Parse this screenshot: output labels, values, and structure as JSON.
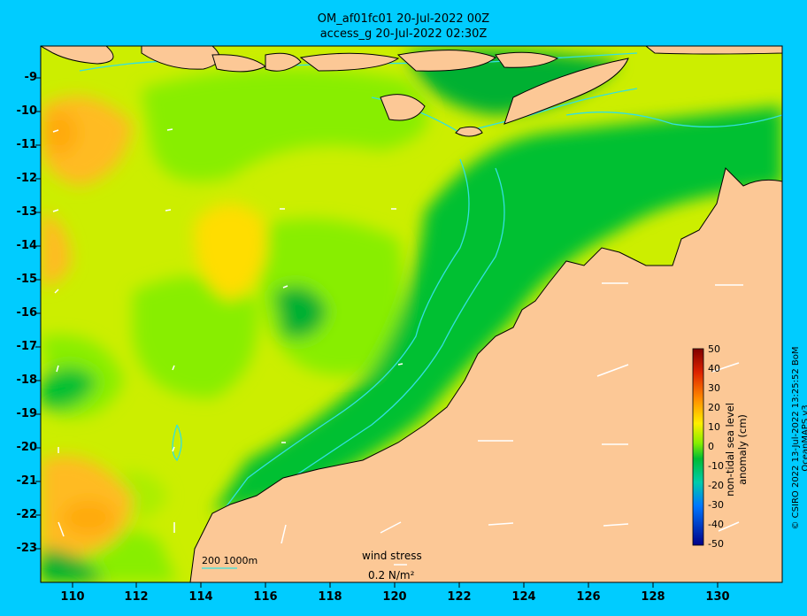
{
  "title": {
    "line1": "OM_af01fc01 20-Jul-2022 00Z",
    "line2": "access_g 20-Jul-2022 02:30Z"
  },
  "y_labels": [
    "-9",
    "-10",
    "-11",
    "-12",
    "-13",
    "-14",
    "-15",
    "-16",
    "-17",
    "-18",
    "-19",
    "-20",
    "-21",
    "-22",
    "-23"
  ],
  "x_labels": [
    "110",
    "112",
    "114",
    "116",
    "118",
    "120",
    "122",
    "124",
    "126",
    "128",
    "130"
  ],
  "colorbar": {
    "label": "non-tidal sea level anomaly (cm)",
    "ticks": [
      "50",
      "40",
      "30",
      "20",
      "10",
      "0",
      "-10",
      "-20",
      "-30",
      "-40",
      "-50"
    ]
  },
  "scale_bar": {
    "text": "200  1000m"
  },
  "wind_legend": {
    "label": "wind stress",
    "value": "0.2 N/m²"
  },
  "copyright": "© CSIRO 2022  13-Jul-2022 13:25:52 BoM OceanMAPS v3",
  "colors": {
    "background": "#00ccff",
    "land": "#fcc896",
    "coast": "#000000",
    "isobath": "#33e0e0",
    "arrow": "#ffffff"
  }
}
